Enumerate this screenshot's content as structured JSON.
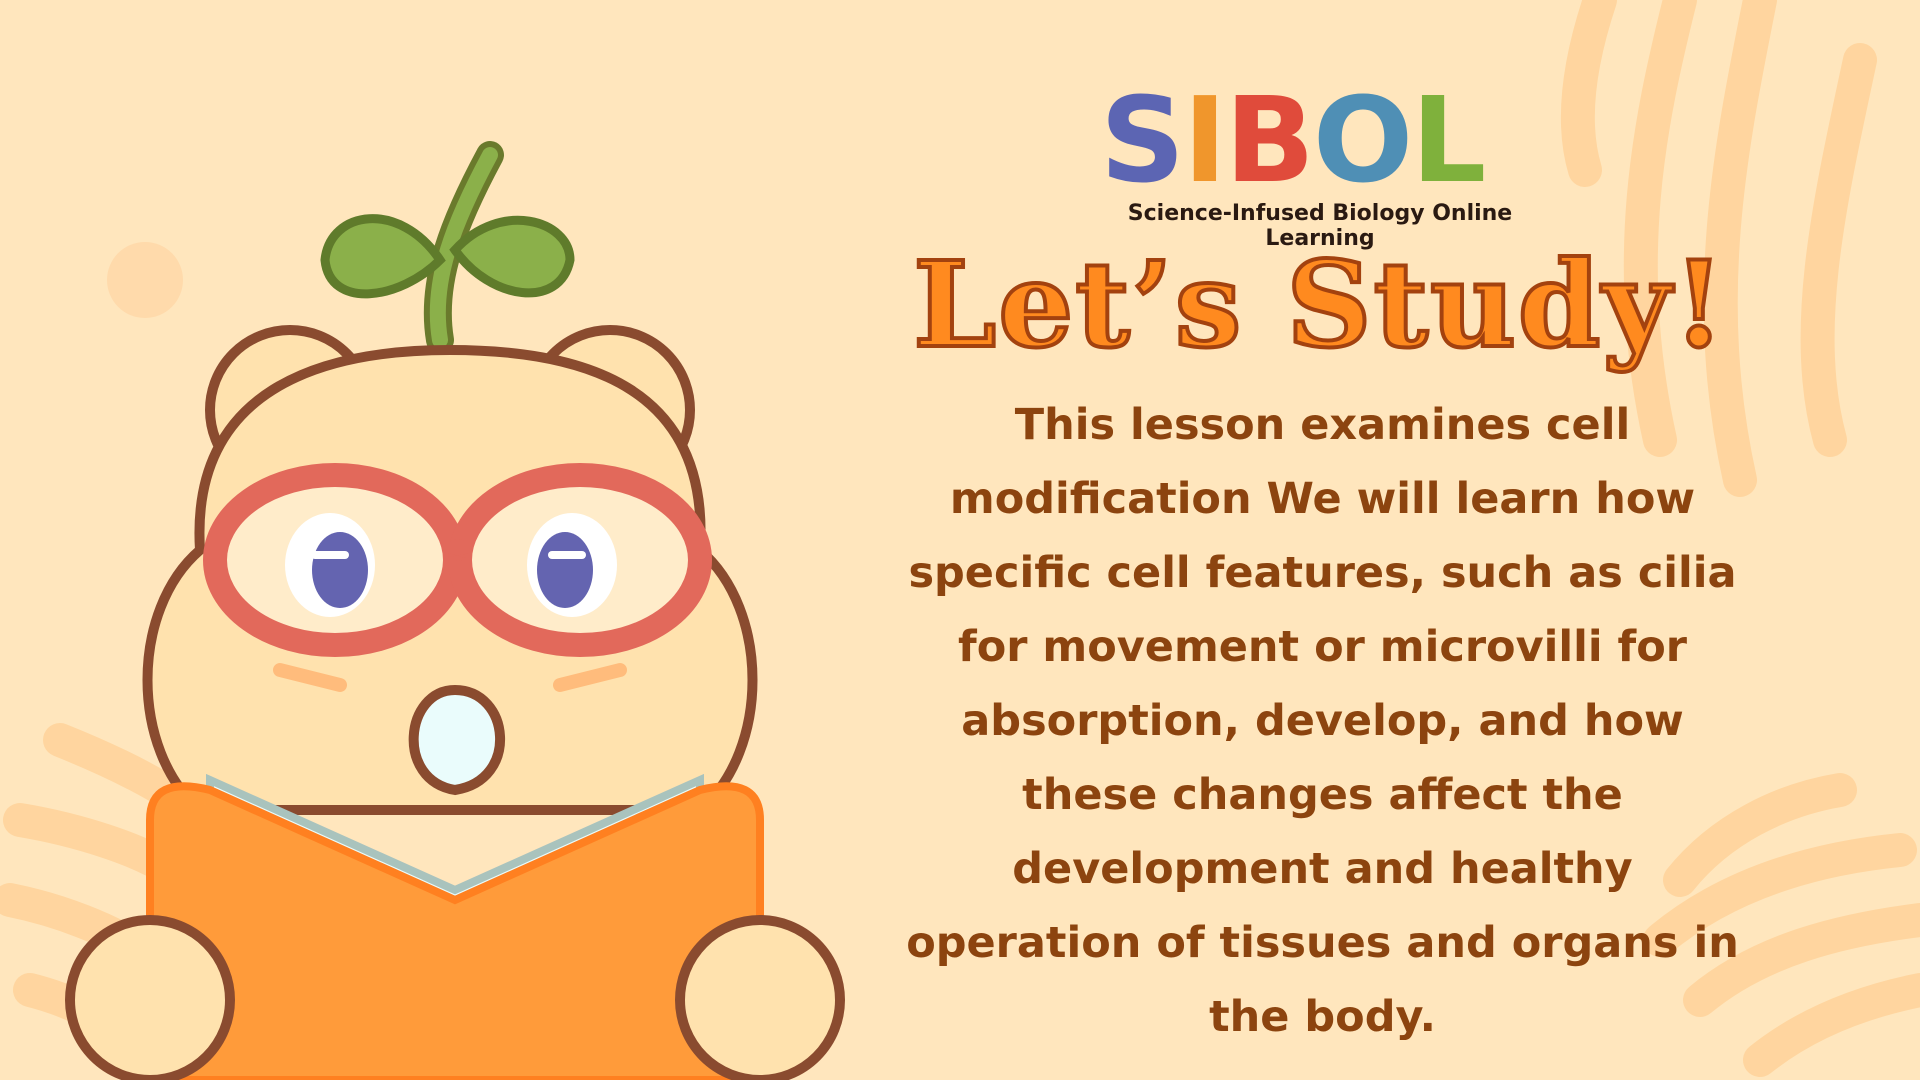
{
  "logo": {
    "letters": [
      {
        "char": "S",
        "color": "#5c65b3"
      },
      {
        "char": "I",
        "color": "#f0962c"
      },
      {
        "char": "B",
        "color": "#e04b3b"
      },
      {
        "char": "O",
        "color": "#4f8fb5"
      },
      {
        "char": "L",
        "color": "#7fb13c"
      }
    ],
    "tagline": "Science-Infused Biology Online Learning"
  },
  "heading": "Let’s Study!",
  "description": "This lesson examines cell modification We will learn how specific cell features, such as cilia for movement or microvilli for absorption, develop, and how these changes affect the development and healthy operation of tissues and organs in the body.",
  "colors": {
    "background": "#ffe6bd",
    "accent_orange": "#ff8a1f",
    "text_brown": "#8c440f"
  }
}
